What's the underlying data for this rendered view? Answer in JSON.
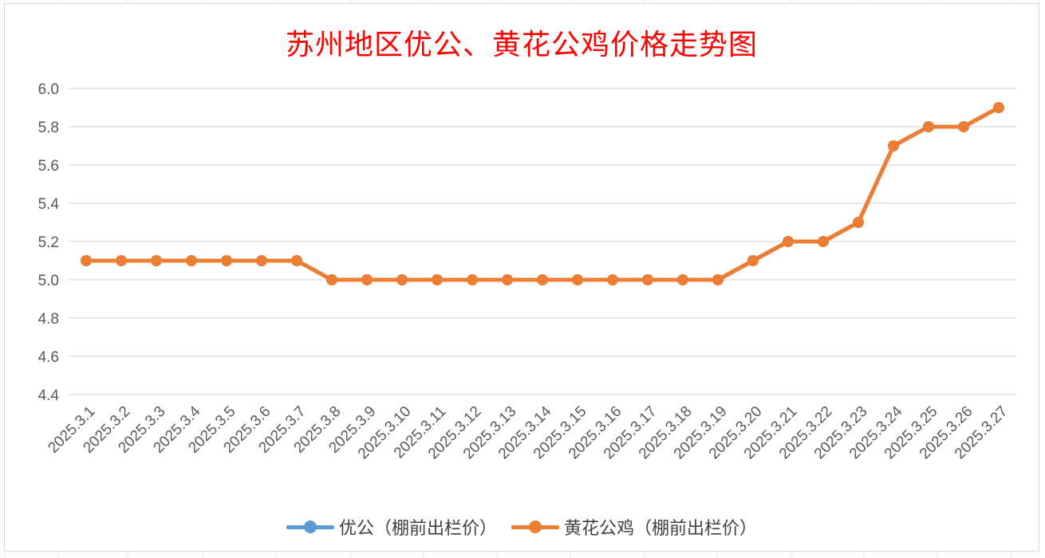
{
  "chart_data": {
    "type": "line",
    "title": "苏州地区优公、黄花公鸡价格走势图",
    "xlabel": "",
    "ylabel": "",
    "ylim": [
      4.4,
      6.0
    ],
    "yticks": [
      4.4,
      4.6,
      4.8,
      5.0,
      5.2,
      5.4,
      5.6,
      5.8,
      6.0
    ],
    "ytick_labels": [
      "4.4",
      "4.6",
      "4.8",
      "5.0",
      "5.2",
      "5.4",
      "5.6",
      "5.8",
      "6.0"
    ],
    "grid": true,
    "legend_position": "bottom",
    "title_color": "#ff0000",
    "categories": [
      "2025.3.1",
      "2025.3.2",
      "2025.3.3",
      "2025.3.4",
      "2025.3.5",
      "2025.3.6",
      "2025.3.7",
      "2025.3.8",
      "2025.3.9",
      "2025.3.10",
      "2025.3.11",
      "2025.3.12",
      "2025.3.13",
      "2025.3.14",
      "2025.3.15",
      "2025.3.16",
      "2025.3.17",
      "2025.3.18",
      "2025.3.19",
      "2025.3.20",
      "2025.3.21",
      "2025.3.22",
      "2025.3.23",
      "2025.3.24",
      "2025.3.25",
      "2025.3.26",
      "2025.3.27"
    ],
    "series": [
      {
        "name": "优公（棚前出栏价）",
        "color": "#5b9bd5",
        "values": [
          5.1,
          5.1,
          5.1,
          5.1,
          5.1,
          5.1,
          5.1,
          5.0,
          5.0,
          5.0,
          5.0,
          5.0,
          5.0,
          5.0,
          5.0,
          5.0,
          5.0,
          5.0,
          5.0,
          5.1,
          5.2,
          5.2,
          5.3,
          5.7,
          5.8,
          5.8,
          5.9
        ]
      },
      {
        "name": "黄花公鸡（棚前出栏价）",
        "color": "#ed7d31",
        "values": [
          5.1,
          5.1,
          5.1,
          5.1,
          5.1,
          5.1,
          5.1,
          5.0,
          5.0,
          5.0,
          5.0,
          5.0,
          5.0,
          5.0,
          5.0,
          5.0,
          5.0,
          5.0,
          5.0,
          5.1,
          5.2,
          5.2,
          5.3,
          5.7,
          5.8,
          5.8,
          5.9
        ]
      }
    ]
  }
}
